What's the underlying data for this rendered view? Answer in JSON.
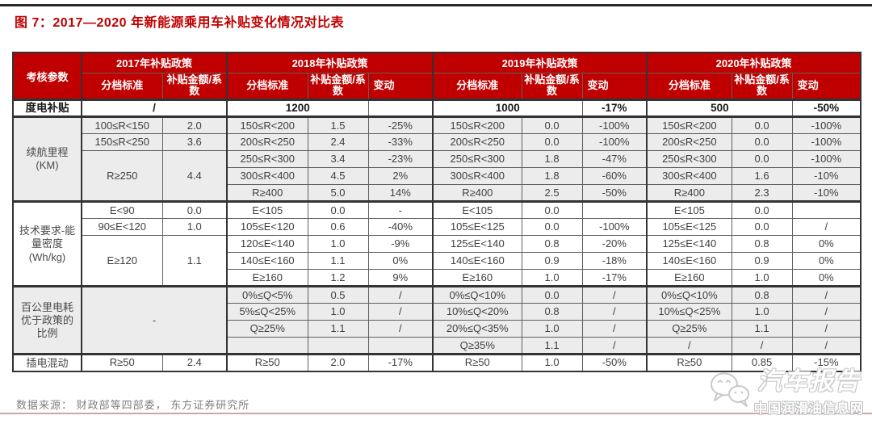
{
  "page": {
    "title": "图 7：2017—2020 年新能源乘用车补贴变化情况对比表",
    "source": "数据来源： 财政部等四部委， 东方证券研究所",
    "accent_color": "#c00000",
    "shade_color": "#ececec",
    "bottom_rule_color": "#cfa7a1"
  },
  "watermark": {
    "icon": "wechat-icon",
    "brand": "汽车报告",
    "site": "中国润滑油信息网"
  },
  "table": {
    "header": {
      "param_col": "考核参数",
      "groups": [
        {
          "year": "2017年补贴政策",
          "cols": [
            "分档标准",
            "补贴金额/系数"
          ]
        },
        {
          "year": "2018年补贴政策",
          "cols": [
            "分档标准",
            "补贴金额/系数",
            "变动"
          ]
        },
        {
          "year": "2019年补贴政策",
          "cols": [
            "分档标准",
            "补贴金额/系数",
            "变动"
          ]
        },
        {
          "year": "2020年补贴政策",
          "cols": [
            "分档标准",
            "补贴金额/系数",
            "变动"
          ]
        }
      ]
    },
    "rows": [
      {
        "g": false,
        "sec": true,
        "bold": true,
        "cells": [
          {
            "t": "度电补贴",
            "lbl": true
          },
          {
            "t": "/",
            "cs": 2
          },
          {
            "t": "1200",
            "cs": 2
          },
          {
            "t": ""
          },
          {
            "t": "1000",
            "cs": 2
          },
          {
            "t": "-17%"
          },
          {
            "t": "500",
            "cs": 2
          },
          {
            "t": "-50%"
          }
        ]
      },
      {
        "g": true,
        "sec": true,
        "cells": [
          {
            "t": "续航里程 (KM)",
            "lbl": true,
            "rs": 5
          },
          {
            "t": "100≤R<150"
          },
          {
            "t": "2.0"
          },
          {
            "t": "150≤R<200"
          },
          {
            "t": "1.5"
          },
          {
            "t": "-25%"
          },
          {
            "t": "150≤R<200"
          },
          {
            "t": "0.0"
          },
          {
            "t": "-100%"
          },
          {
            "t": "150≤R<200"
          },
          {
            "t": "0.0"
          },
          {
            "t": "-100%"
          }
        ]
      },
      {
        "g": true,
        "cells": [
          {
            "t": "150≤R<250"
          },
          {
            "t": "3.6"
          },
          {
            "t": "200≤R<250"
          },
          {
            "t": "2.4"
          },
          {
            "t": "-33%"
          },
          {
            "t": "200≤R<250"
          },
          {
            "t": "0.0"
          },
          {
            "t": "-100%"
          },
          {
            "t": "200≤R<250"
          },
          {
            "t": "0.0"
          },
          {
            "t": "-100%"
          }
        ]
      },
      {
        "g": true,
        "cells": [
          {
            "t": "R≥250",
            "rs": 3
          },
          {
            "t": "4.4",
            "rs": 3
          },
          {
            "t": "250≤R<300"
          },
          {
            "t": "3.4"
          },
          {
            "t": "-23%"
          },
          {
            "t": "250≤R<300"
          },
          {
            "t": "1.8"
          },
          {
            "t": "-47%"
          },
          {
            "t": "250≤R<300"
          },
          {
            "t": "0.0"
          },
          {
            "t": "-100%"
          }
        ]
      },
      {
        "g": true,
        "cells": [
          {
            "t": "300≤R<400"
          },
          {
            "t": "4.5"
          },
          {
            "t": "2%"
          },
          {
            "t": "300≤R<400"
          },
          {
            "t": "1.8"
          },
          {
            "t": "-60%"
          },
          {
            "t": "300≤R<400"
          },
          {
            "t": "1.6"
          },
          {
            "t": "-10%"
          }
        ]
      },
      {
        "g": true,
        "cells": [
          {
            "t": "R≥400"
          },
          {
            "t": "5.0"
          },
          {
            "t": "14%"
          },
          {
            "t": "R≥400"
          },
          {
            "t": "2.5"
          },
          {
            "t": "-50%"
          },
          {
            "t": "R≥400"
          },
          {
            "t": "2.3"
          },
          {
            "t": "-10%"
          }
        ]
      },
      {
        "g": false,
        "sec": true,
        "cells": [
          {
            "t": "技术要求-能量密度 (Wh/kg)",
            "lbl": true,
            "rs": 5
          },
          {
            "t": "E<90"
          },
          {
            "t": "0.0"
          },
          {
            "t": "E<105"
          },
          {
            "t": "0.0"
          },
          {
            "t": "-"
          },
          {
            "t": "E<105"
          },
          {
            "t": "0.0"
          },
          {
            "t": ""
          },
          {
            "t": "E<105"
          },
          {
            "t": "0.0"
          },
          {
            "t": ""
          }
        ]
      },
      {
        "g": false,
        "cells": [
          {
            "t": "90≤E<120"
          },
          {
            "t": "1.0"
          },
          {
            "t": "105≤E<120"
          },
          {
            "t": "0.6"
          },
          {
            "t": "-40%"
          },
          {
            "t": "105≤E<125"
          },
          {
            "t": "0.0"
          },
          {
            "t": "-100%"
          },
          {
            "t": "105≤E<125"
          },
          {
            "t": "0.0"
          },
          {
            "t": "/"
          }
        ]
      },
      {
        "g": false,
        "cells": [
          {
            "t": "E≥120",
            "rs": 3
          },
          {
            "t": "1.1",
            "rs": 3
          },
          {
            "t": "120≤E<140"
          },
          {
            "t": "1.0"
          },
          {
            "t": "-9%"
          },
          {
            "t": "125≤E<140"
          },
          {
            "t": "0.8"
          },
          {
            "t": "-20%"
          },
          {
            "t": "125≤E<140"
          },
          {
            "t": "0.8"
          },
          {
            "t": "0%"
          }
        ]
      },
      {
        "g": false,
        "cells": [
          {
            "t": "140≤E<160"
          },
          {
            "t": "1.1"
          },
          {
            "t": "0%"
          },
          {
            "t": "140≤E<160"
          },
          {
            "t": "0.9"
          },
          {
            "t": "-18%"
          },
          {
            "t": "140≤E<160"
          },
          {
            "t": "0.9"
          },
          {
            "t": "0%"
          }
        ]
      },
      {
        "g": false,
        "cells": [
          {
            "t": "E≥160"
          },
          {
            "t": "1.2"
          },
          {
            "t": "9%"
          },
          {
            "t": "E≥160"
          },
          {
            "t": "1.0"
          },
          {
            "t": "-17%"
          },
          {
            "t": "E≥160"
          },
          {
            "t": "1.0"
          },
          {
            "t": "0%"
          }
        ]
      },
      {
        "g": true,
        "sec": true,
        "cells": [
          {
            "t": "百公里电耗优于政策的比例",
            "lbl": true,
            "rs": 4
          },
          {
            "t": "-",
            "cs": 2,
            "rs": 4
          },
          {
            "t": "0%≤Q<5%"
          },
          {
            "t": "0.5"
          },
          {
            "t": "/"
          },
          {
            "t": "0%≤Q<10%"
          },
          {
            "t": "0.0"
          },
          {
            "t": "/"
          },
          {
            "t": "0%≤Q<10%"
          },
          {
            "t": "0.8"
          },
          {
            "t": "/"
          }
        ]
      },
      {
        "g": true,
        "cells": [
          {
            "t": "5%≤Q<25%"
          },
          {
            "t": "1.0"
          },
          {
            "t": "/"
          },
          {
            "t": "10%≤Q<20%"
          },
          {
            "t": "0.8"
          },
          {
            "t": "/"
          },
          {
            "t": "10%≤Q<25%"
          },
          {
            "t": "1.0"
          },
          {
            "t": "/"
          }
        ]
      },
      {
        "g": true,
        "cells": [
          {
            "t": "Q≥25%"
          },
          {
            "t": "1.1"
          },
          {
            "t": "/"
          },
          {
            "t": "20%≤Q<35%"
          },
          {
            "t": "1.0"
          },
          {
            "t": "/"
          },
          {
            "t": "Q≥25%"
          },
          {
            "t": "1.1"
          },
          {
            "t": "/"
          }
        ]
      },
      {
        "g": true,
        "cells": [
          {
            "t": ""
          },
          {
            "t": ""
          },
          {
            "t": ""
          },
          {
            "t": "Q≥35%"
          },
          {
            "t": "1.1"
          },
          {
            "t": "/"
          },
          {
            "t": "/"
          },
          {
            "t": "/"
          },
          {
            "t": "/"
          }
        ]
      },
      {
        "g": false,
        "sec": true,
        "cells": [
          {
            "t": "插电混动",
            "lbl": true
          },
          {
            "t": "R≥50"
          },
          {
            "t": "2.4"
          },
          {
            "t": "R≥50"
          },
          {
            "t": "2.0"
          },
          {
            "t": "-17%"
          },
          {
            "t": "R≥50"
          },
          {
            "t": "1.0"
          },
          {
            "t": "-50%"
          },
          {
            "t": "R≥50"
          },
          {
            "t": "0.85"
          },
          {
            "t": "-15%"
          }
        ]
      }
    ]
  }
}
